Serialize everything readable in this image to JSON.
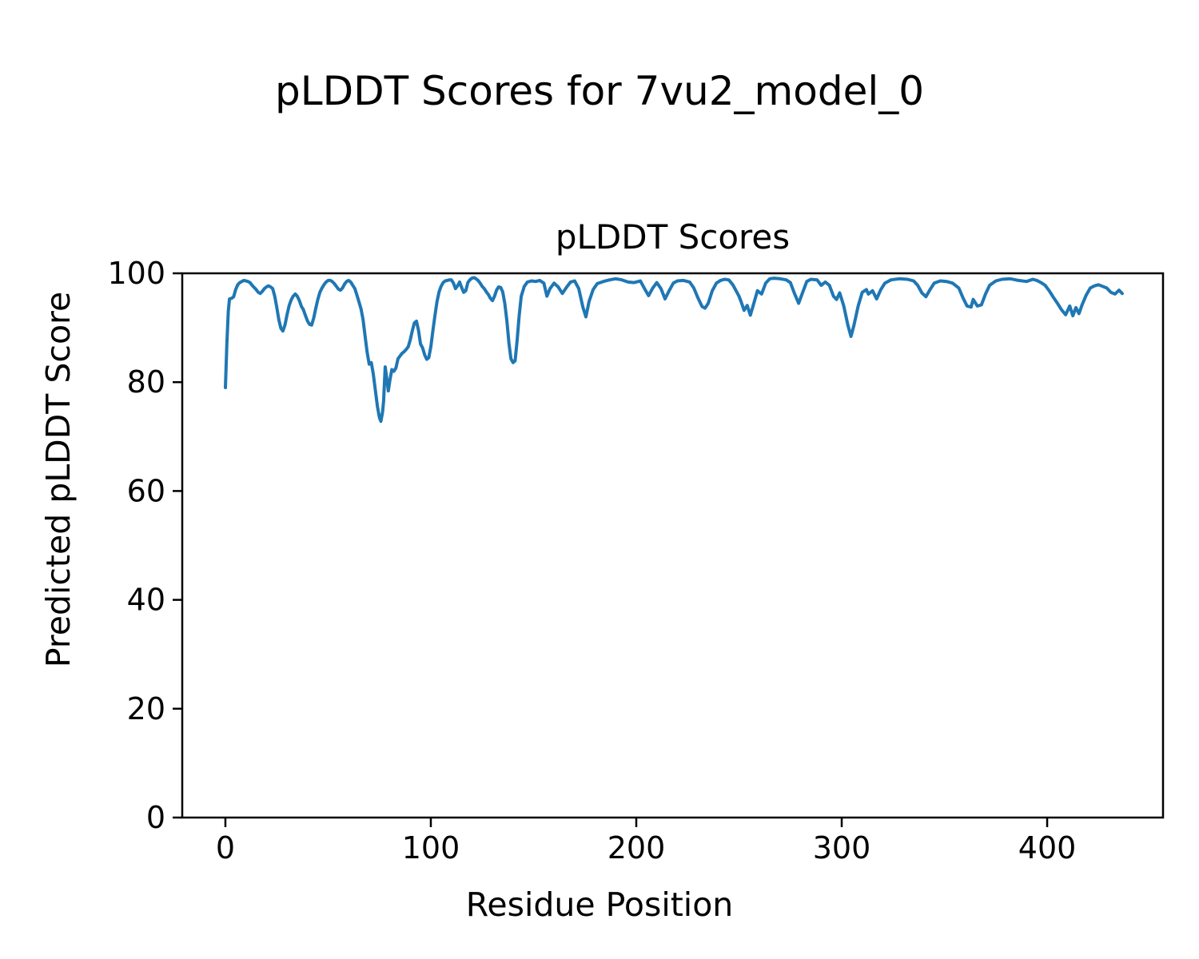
{
  "figure": {
    "suptitle": "pLDDT Scores for 7vu2_model_0",
    "axes_title": "pLDDT Scores",
    "xlabel": "Residue Position",
    "ylabel": "Predicted pLDDT Score"
  },
  "colors": {
    "line": "#1f77b4",
    "axis": "#000000",
    "background": "#ffffff",
    "text": "#000000"
  },
  "chart_data": {
    "type": "line",
    "title": "pLDDT Scores",
    "suptitle": "pLDDT Scores for 7vu2_model_0",
    "xlabel": "Residue Position",
    "ylabel": "Predicted pLDDT Score",
    "xlim": [
      -21,
      456.4
    ],
    "ylim": [
      0,
      100
    ],
    "x_ticks": [
      0,
      100,
      200,
      300,
      400
    ],
    "y_ticks": [
      0,
      20,
      40,
      60,
      80,
      100
    ],
    "grid": false,
    "legend_position": "none",
    "n_residues": 437,
    "series": [
      {
        "name": "pLDDT",
        "color": "#1f77b4",
        "points": [
          [
            0,
            79
          ],
          [
            0.7,
            87
          ],
          [
            1.4,
            93
          ],
          [
            2,
            95.3
          ],
          [
            3,
            95.4
          ],
          [
            4,
            95.7
          ],
          [
            5,
            97
          ],
          [
            6,
            97.9
          ],
          [
            7,
            98.3
          ],
          [
            8,
            98.5
          ],
          [
            9,
            98.7
          ],
          [
            10,
            98.6
          ],
          [
            11,
            98.5
          ],
          [
            12,
            98.3
          ],
          [
            13,
            97.8
          ],
          [
            14,
            97.4
          ],
          [
            15,
            97
          ],
          [
            16,
            96.5
          ],
          [
            17,
            96.3
          ],
          [
            18,
            96.7
          ],
          [
            19,
            97.2
          ],
          [
            20,
            97.5
          ],
          [
            21,
            97.7
          ],
          [
            22,
            97.5
          ],
          [
            23,
            97.2
          ],
          [
            24,
            95.8
          ],
          [
            25,
            93.8
          ],
          [
            26,
            91.5
          ],
          [
            27,
            89.9
          ],
          [
            28,
            89.4
          ],
          [
            29,
            90.5
          ],
          [
            30,
            92.4
          ],
          [
            31,
            94
          ],
          [
            32,
            95.1
          ],
          [
            33,
            95.8
          ],
          [
            34,
            96.2
          ],
          [
            35,
            95.8
          ],
          [
            36,
            95
          ],
          [
            37,
            93.9
          ],
          [
            38,
            93.3
          ],
          [
            39,
            92.2
          ],
          [
            40,
            91.2
          ],
          [
            41,
            90.6
          ],
          [
            42,
            90.5
          ],
          [
            43,
            91.8
          ],
          [
            44,
            93.6
          ],
          [
            45,
            95.2
          ],
          [
            46,
            96.5
          ],
          [
            47,
            97.3
          ],
          [
            48,
            97.9
          ],
          [
            49,
            98.4
          ],
          [
            50,
            98.7
          ],
          [
            51,
            98.7
          ],
          [
            52,
            98.5
          ],
          [
            53,
            98.1
          ],
          [
            54,
            97.6
          ],
          [
            55,
            97.1
          ],
          [
            56,
            96.9
          ],
          [
            57,
            97.3
          ],
          [
            58,
            98
          ],
          [
            59,
            98.5
          ],
          [
            60,
            98.7
          ],
          [
            61,
            98.4
          ],
          [
            62,
            97.8
          ],
          [
            63,
            97.2
          ],
          [
            64,
            96
          ],
          [
            65,
            94.8
          ],
          [
            66,
            93.5
          ],
          [
            67,
            91.5
          ],
          [
            68,
            88.5
          ],
          [
            69,
            85.5
          ],
          [
            70,
            83.3
          ],
          [
            71,
            83.6
          ],
          [
            72,
            81.5
          ],
          [
            73,
            78.5
          ],
          [
            74,
            75.5
          ],
          [
            75,
            73.5
          ],
          [
            75.7,
            72.8
          ],
          [
            76.5,
            74.5
          ],
          [
            77,
            76.5
          ],
          [
            77.8,
            82.8
          ],
          [
            78.6,
            80.5
          ],
          [
            79.3,
            78.4
          ],
          [
            80,
            80.2
          ],
          [
            81,
            82.3
          ],
          [
            82,
            82
          ],
          [
            83,
            82.6
          ],
          [
            84,
            84.3
          ],
          [
            85,
            84.8
          ],
          [
            86,
            85.3
          ],
          [
            87,
            85.6
          ],
          [
            88,
            86
          ],
          [
            89,
            86.5
          ],
          [
            90,
            87.8
          ],
          [
            91,
            89.5
          ],
          [
            92,
            90.9
          ],
          [
            93,
            91.2
          ],
          [
            94,
            89.5
          ],
          [
            95,
            87
          ],
          [
            96,
            86.3
          ],
          [
            97,
            85
          ],
          [
            98,
            84.2
          ],
          [
            99,
            84.5
          ],
          [
            100,
            86.5
          ],
          [
            101,
            89.5
          ],
          [
            102,
            92.2
          ],
          [
            103,
            94.8
          ],
          [
            104,
            96.6
          ],
          [
            105,
            97.6
          ],
          [
            106,
            98.3
          ],
          [
            107,
            98.6
          ],
          [
            108,
            98.7
          ],
          [
            109,
            98.8
          ],
          [
            110,
            98.8
          ],
          [
            111,
            98.2
          ],
          [
            112,
            97.2
          ],
          [
            113,
            97.7
          ],
          [
            114,
            98.4
          ],
          [
            115,
            97.4
          ],
          [
            116,
            96.5
          ],
          [
            117,
            96.8
          ],
          [
            118,
            98.3
          ],
          [
            119,
            98.8
          ],
          [
            120,
            99.1
          ],
          [
            121,
            99.2
          ],
          [
            122,
            99
          ],
          [
            123,
            98.7
          ],
          [
            124,
            98.2
          ],
          [
            125,
            97.6
          ],
          [
            126,
            97.2
          ],
          [
            127,
            96.6
          ],
          [
            128,
            96.1
          ],
          [
            129,
            95.4
          ],
          [
            130,
            95
          ],
          [
            131,
            95.8
          ],
          [
            132,
            96.9
          ],
          [
            133,
            97.5
          ],
          [
            134,
            97.4
          ],
          [
            135,
            96.6
          ],
          [
            136,
            94.5
          ],
          [
            137,
            91.3
          ],
          [
            138,
            87.2
          ],
          [
            139,
            84.3
          ],
          [
            140,
            83.6
          ],
          [
            141,
            83.9
          ],
          [
            142,
            87.6
          ],
          [
            143,
            92.2
          ],
          [
            144,
            95.8
          ],
          [
            145.5,
            97.6
          ],
          [
            147,
            98.4
          ],
          [
            149,
            98.6
          ],
          [
            151,
            98.5
          ],
          [
            153,
            98.7
          ],
          [
            155,
            98.2
          ],
          [
            156.5,
            95.8
          ],
          [
            158,
            97.2
          ],
          [
            160,
            98.2
          ],
          [
            162,
            97.5
          ],
          [
            164,
            96.3
          ],
          [
            166,
            97.4
          ],
          [
            168,
            98.4
          ],
          [
            170,
            98.6
          ],
          [
            172,
            97.2
          ],
          [
            174,
            93.8
          ],
          [
            175.5,
            92
          ],
          [
            177,
            94.8
          ],
          [
            179,
            97
          ],
          [
            181,
            98.1
          ],
          [
            184,
            98.5
          ],
          [
            187,
            98.8
          ],
          [
            190,
            99
          ],
          [
            193,
            98.8
          ],
          [
            196,
            98.4
          ],
          [
            199,
            98.3
          ],
          [
            202,
            98.6
          ],
          [
            204,
            97.2
          ],
          [
            206,
            95.9
          ],
          [
            208,
            97.3
          ],
          [
            210,
            98.3
          ],
          [
            212,
            97.2
          ],
          [
            214,
            95.3
          ],
          [
            216,
            96.8
          ],
          [
            218,
            98.2
          ],
          [
            220,
            98.6
          ],
          [
            223,
            98.7
          ],
          [
            226,
            98.4
          ],
          [
            228,
            97.3
          ],
          [
            230,
            95.5
          ],
          [
            232,
            93.9
          ],
          [
            233.5,
            93.6
          ],
          [
            235,
            94.5
          ],
          [
            237,
            96.8
          ],
          [
            239,
            98.2
          ],
          [
            241,
            98.7
          ],
          [
            243,
            98.9
          ],
          [
            245,
            98.8
          ],
          [
            247,
            97.9
          ],
          [
            249,
            96.5
          ],
          [
            250,
            95.8
          ],
          [
            251,
            94.8
          ],
          [
            252.5,
            93.2
          ],
          [
            254,
            94.1
          ],
          [
            255.5,
            92.3
          ],
          [
            257,
            94.2
          ],
          [
            259,
            96.8
          ],
          [
            261,
            96.2
          ],
          [
            263,
            98.2
          ],
          [
            265,
            99
          ],
          [
            267,
            99.1
          ],
          [
            270,
            99
          ],
          [
            273,
            98.8
          ],
          [
            275,
            98.3
          ],
          [
            277,
            96.3
          ],
          [
            279,
            94.5
          ],
          [
            281,
            96.5
          ],
          [
            283,
            98.5
          ],
          [
            285,
            98.9
          ],
          [
            288,
            98.8
          ],
          [
            290,
            97.8
          ],
          [
            292,
            98.4
          ],
          [
            294,
            97.8
          ],
          [
            296,
            95.8
          ],
          [
            297.5,
            95.2
          ],
          [
            299,
            96.4
          ],
          [
            301,
            94
          ],
          [
            303,
            90.5
          ],
          [
            304.5,
            88.4
          ],
          [
            306,
            90.5
          ],
          [
            308,
            94
          ],
          [
            310,
            96.5
          ],
          [
            312,
            97
          ],
          [
            313,
            96.2
          ],
          [
            315,
            96.8
          ],
          [
            317,
            95.3
          ],
          [
            319,
            97
          ],
          [
            321,
            98.2
          ],
          [
            324,
            98.8
          ],
          [
            328,
            99
          ],
          [
            332,
            98.9
          ],
          [
            335,
            98.6
          ],
          [
            337,
            97.8
          ],
          [
            339,
            96.4
          ],
          [
            341,
            95.7
          ],
          [
            343,
            97
          ],
          [
            345,
            98.2
          ],
          [
            348,
            98.6
          ],
          [
            351,
            98.5
          ],
          [
            354,
            98.2
          ],
          [
            357,
            97.3
          ],
          [
            359,
            95.5
          ],
          [
            361,
            94
          ],
          [
            363,
            93.8
          ],
          [
            364,
            95.2
          ],
          [
            366,
            94
          ],
          [
            368,
            94.2
          ],
          [
            370,
            96.2
          ],
          [
            372,
            97.8
          ],
          [
            375,
            98.6
          ],
          [
            378,
            98.9
          ],
          [
            382,
            99
          ],
          [
            386,
            98.7
          ],
          [
            390,
            98.5
          ],
          [
            393,
            98.9
          ],
          [
            395,
            98.7
          ],
          [
            397,
            98.3
          ],
          [
            399,
            97.8
          ],
          [
            401,
            96.8
          ],
          [
            403,
            95.6
          ],
          [
            405,
            94.5
          ],
          [
            407,
            93.3
          ],
          [
            409,
            92.4
          ],
          [
            411,
            94
          ],
          [
            412.5,
            92.2
          ],
          [
            414,
            93.7
          ],
          [
            415.5,
            92.6
          ],
          [
            417,
            94.2
          ],
          [
            419,
            96
          ],
          [
            421,
            97.3
          ],
          [
            423,
            97.7
          ],
          [
            425,
            97.9
          ],
          [
            427,
            97.6
          ],
          [
            429,
            97.3
          ],
          [
            431,
            96.5
          ],
          [
            433,
            96.2
          ],
          [
            435,
            96.9
          ],
          [
            436.5,
            96.3
          ]
        ]
      }
    ]
  }
}
